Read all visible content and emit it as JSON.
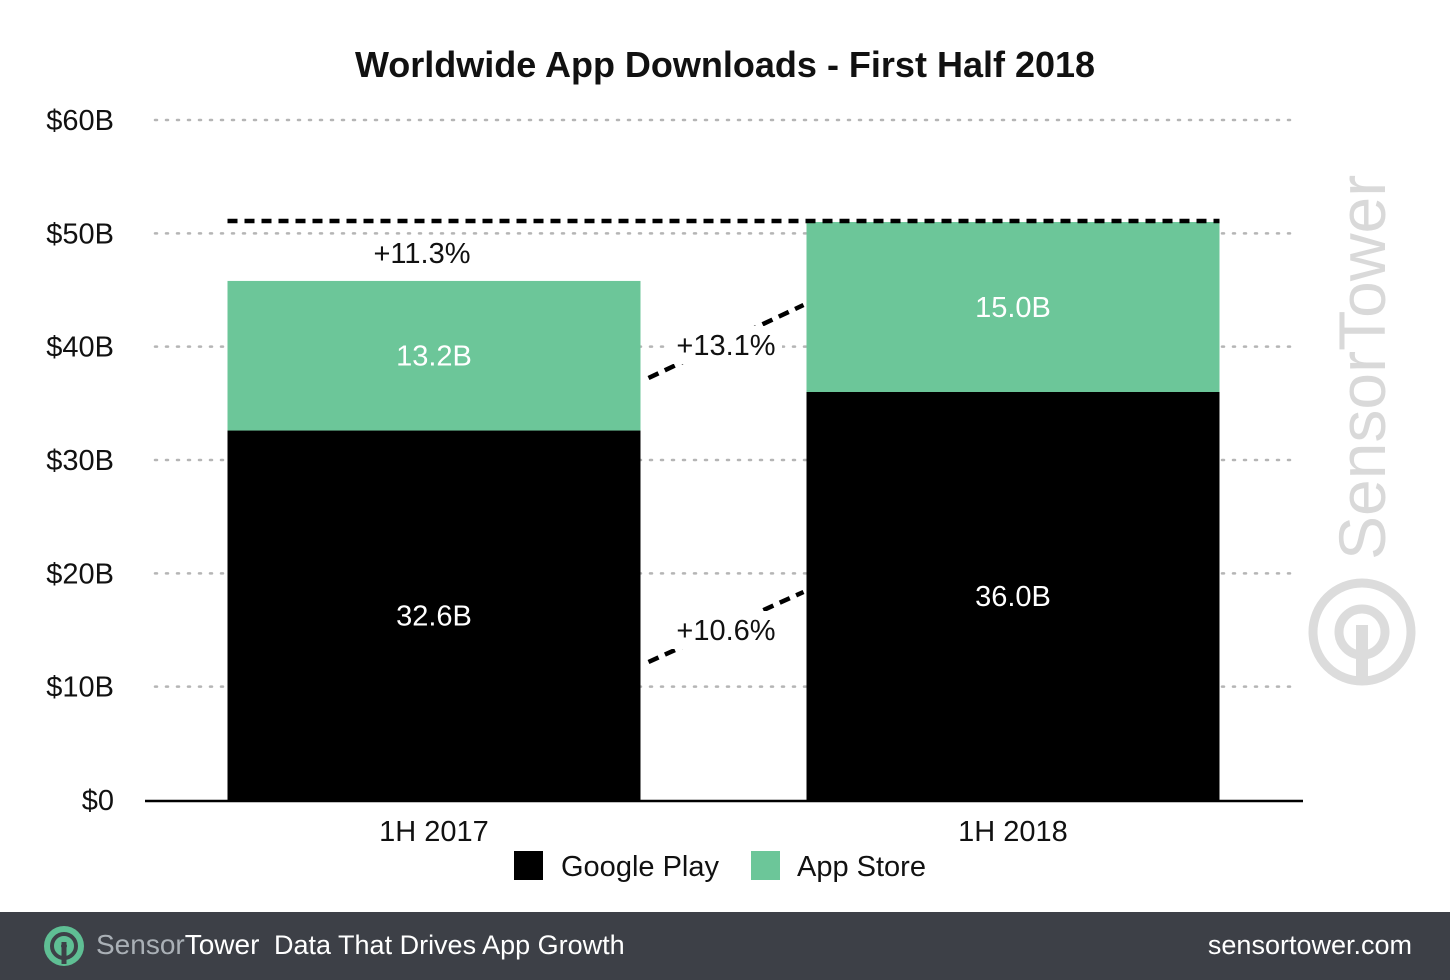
{
  "chart_data": {
    "type": "bar",
    "stacked": true,
    "title": "Worldwide App Downloads - First Half 2018",
    "xlabel": "",
    "ylabel": "",
    "categories": [
      "1H 2017",
      "1H 2018"
    ],
    "ylim": [
      0,
      60
    ],
    "yticks": [
      0,
      10,
      20,
      30,
      40,
      50,
      60
    ],
    "ytick_labels": [
      "$0",
      "$10B",
      "$20B",
      "$30B",
      "$40B",
      "$50B",
      "$60B"
    ],
    "grid": "dotted horizontal",
    "legend_placement": "bottom-center",
    "series": [
      {
        "name": "Google Play",
        "color": "#000000",
        "label_color": "#ffffff",
        "values": [
          32.6,
          36.0
        ],
        "labels": [
          "32.6B",
          "36.0B"
        ]
      },
      {
        "name": "App Store",
        "color": "#6cc699",
        "label_color": "#ffffff",
        "values": [
          13.2,
          15.0
        ],
        "labels": [
          "13.2B",
          "15.0B"
        ]
      }
    ],
    "annotations": {
      "total_growth": "+11.3%",
      "app_store_growth": "+13.1%",
      "google_play_growth": "+10.6%"
    }
  },
  "watermark": "SensorTower",
  "footer": {
    "brand_part1": "Sensor",
    "brand_part2": "Tower",
    "tagline": "Data That Drives App Growth",
    "url": "sensortower.com"
  },
  "colors": {
    "footer_bg": "#3d4047",
    "app_store": "#6cc699",
    "google_play": "#000000"
  }
}
